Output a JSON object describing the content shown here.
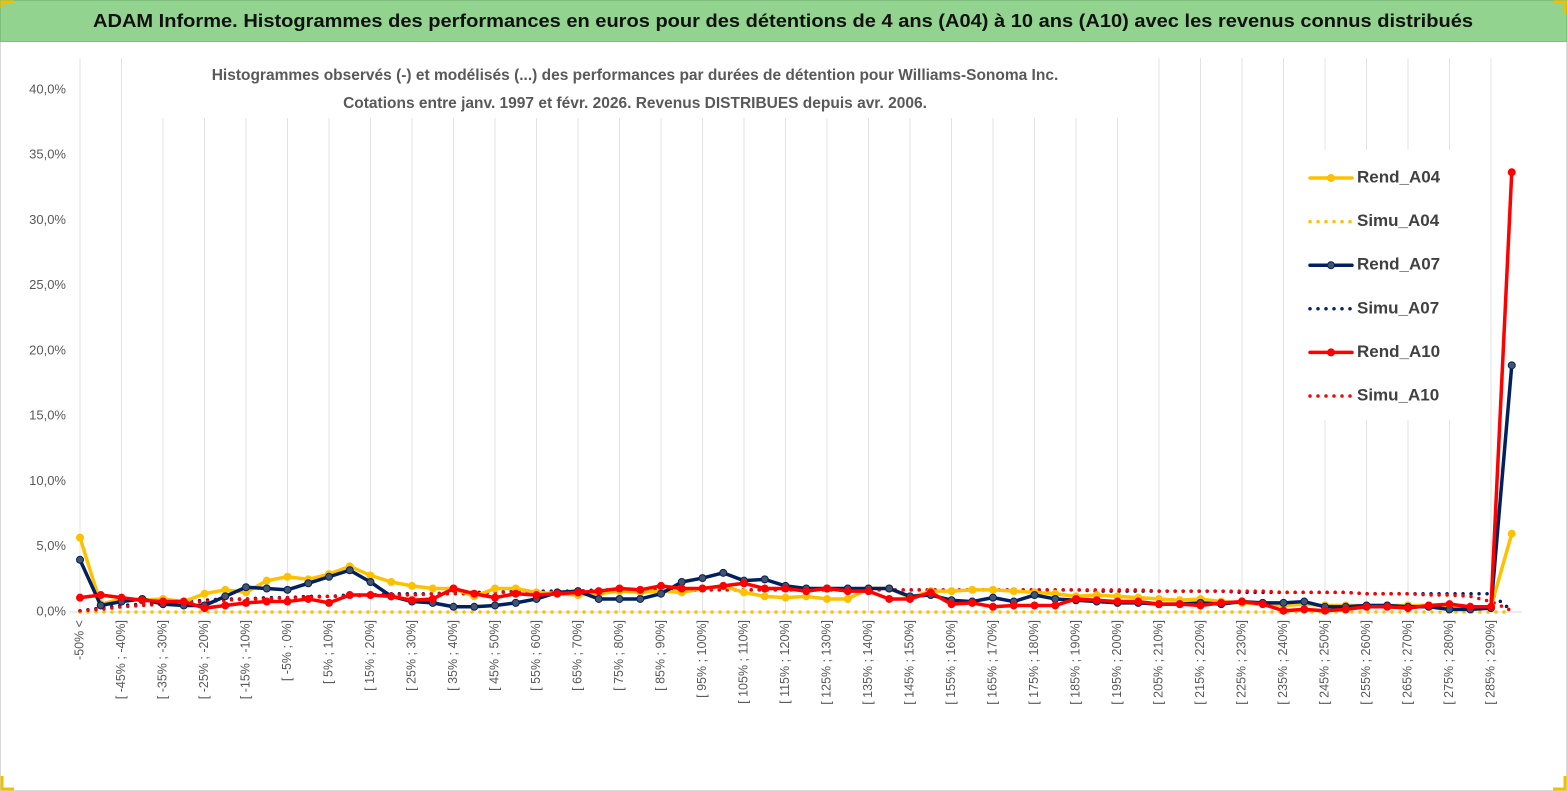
{
  "chart_data": {
    "type": "line",
    "title": "ADAM Informe. Histogrammes des performances en euros pour des détentions de 4 ans (A04) à 10 ans (A10) avec les revenus connus distribués",
    "subtitle": [
      "Histogrammes observés (-)  et modélisés (...) des performances par durées de détention pour Williams-Sonoma Inc.",
      "Cotations entre janv. 1997 et févr. 2026. Revenus DISTRIBUES depuis avr. 2006."
    ],
    "categories": [
      "-50% <",
      null,
      "[ -45% ; -40%]",
      null,
      "[ -35% ; -30%]",
      null,
      "[ -25% ; -20%]",
      null,
      "[ -15% ; -10%]",
      null,
      "[ -5% ; 0%]",
      null,
      "[ 5% ; 10%]",
      null,
      "[ 15% ; 20%]",
      null,
      "[ 25% ; 30%]",
      null,
      "[ 35% ; 40%]",
      null,
      "[ 45% ; 50%]",
      null,
      "[ 55% ; 60%]",
      null,
      "[ 65% ; 70%]",
      null,
      "[ 75% ; 80%]",
      null,
      "[ 85% ; 90%]",
      null,
      "[ 95% ; 100%]",
      null,
      "[ 105% ; 110%]",
      null,
      "[ 115% ; 120%]",
      null,
      "[ 125% ; 130%]",
      null,
      "[ 135% ; 140%]",
      null,
      "[ 145% ; 150%]",
      null,
      "[ 155% ; 160%]",
      null,
      "[ 165% ; 170%]",
      null,
      "[ 175% ; 180%]",
      null,
      "[ 185% ; 190%]",
      null,
      "[ 195% ; 200%]",
      null,
      "[ 205% ; 210%]",
      null,
      "[ 215% ; 220%]",
      null,
      "[ 225% ; 230%]",
      null,
      "[ 235% ; 240%]",
      null,
      "[ 245% ; 250%]",
      null,
      "[ 255% ; 260%]",
      null,
      "[ 265% ; 270%]",
      null,
      "[ 275% ; 280%]",
      null,
      "[ 285% ; 290%]",
      null
    ],
    "ylim": [
      0,
      40
    ],
    "yticks": [
      {
        "value": 0,
        "label": "0,0%"
      },
      {
        "value": 5,
        "label": "5,0%"
      },
      {
        "value": 10,
        "label": "10,0%"
      },
      {
        "value": 15,
        "label": "15,0%"
      },
      {
        "value": 20,
        "label": "20,0%"
      },
      {
        "value": 25,
        "label": "25,0%"
      },
      {
        "value": 30,
        "label": "30,0%"
      },
      {
        "value": 35,
        "label": "35,0%"
      },
      {
        "value": 40,
        "label": "40,0%"
      }
    ],
    "grid": "vertical",
    "legend": "right",
    "series": [
      {
        "name": "Rend_A04",
        "color": "#FFC000",
        "style": "solid",
        "markers": true,
        "values": [
          5.7,
          0.6,
          1.0,
          0.9,
          1.0,
          0.8,
          1.4,
          1.7,
          1.5,
          2.4,
          2.7,
          2.5,
          2.9,
          3.5,
          2.8,
          2.3,
          2.0,
          1.8,
          1.8,
          1.2,
          1.8,
          1.8,
          1.5,
          1.4,
          1.3,
          1.4,
          1.6,
          1.5,
          1.6,
          1.5,
          1.8,
          2.0,
          1.5,
          1.2,
          1.1,
          1.2,
          1.0,
          1.0,
          1.8,
          1.8,
          1.1,
          1.6,
          1.6,
          1.7,
          1.7,
          1.6,
          1.5,
          1.4,
          1.2,
          1.3,
          1.2,
          1.1,
          1.0,
          0.9,
          1.0,
          0.8,
          0.7,
          0.6,
          0.5,
          0.6,
          0.5,
          0.5,
          0.5,
          0.5,
          0.5,
          0.5,
          0.4,
          0.4,
          0.4,
          6.0
        ]
      },
      {
        "name": "Simu_A04",
        "color": "#FFC000",
        "style": "dotted",
        "markers": false,
        "values": [
          0,
          0,
          0,
          0,
          0,
          0,
          0,
          0,
          0,
          0,
          0,
          0,
          0,
          0,
          0,
          0,
          0,
          0,
          0,
          0,
          0,
          0,
          0,
          0,
          0,
          0,
          0,
          0,
          0,
          0,
          0,
          0,
          0,
          0,
          0,
          0,
          0,
          0,
          0,
          0,
          0,
          0,
          0,
          0,
          0,
          0,
          0,
          0,
          0,
          0,
          0,
          0,
          0,
          0,
          0,
          0,
          0,
          0,
          0,
          0,
          0,
          0,
          0,
          0,
          0,
          0,
          0,
          0,
          0,
          0
        ]
      },
      {
        "name": "Rend_A07",
        "color": "#002060",
        "style": "solid",
        "markers": true,
        "values": [
          4.0,
          0.5,
          0.8,
          1.0,
          0.6,
          0.5,
          0.5,
          1.2,
          1.9,
          1.8,
          1.7,
          2.2,
          2.7,
          3.2,
          2.3,
          1.2,
          0.8,
          0.7,
          0.4,
          0.4,
          0.5,
          0.7,
          1.0,
          1.5,
          1.6,
          1.0,
          1.0,
          1.0,
          1.4,
          2.3,
          2.6,
          3.0,
          2.4,
          2.5,
          2.0,
          1.8,
          1.8,
          1.8,
          1.8,
          1.8,
          1.2,
          1.3,
          0.9,
          0.8,
          1.1,
          0.8,
          1.3,
          1.0,
          0.9,
          0.8,
          0.7,
          0.7,
          0.6,
          0.6,
          0.7,
          0.6,
          0.8,
          0.7,
          0.7,
          0.8,
          0.4,
          0.4,
          0.5,
          0.5,
          0.4,
          0.4,
          0.2,
          0.2,
          0.3,
          18.9
        ]
      },
      {
        "name": "Simu_A07",
        "color": "#002060",
        "style": "dotted",
        "markers": false,
        "values": [
          0.1,
          0.3,
          0.5,
          0.6,
          0.7,
          0.8,
          0.9,
          1.0,
          1.0,
          1.1,
          1.1,
          1.2,
          1.2,
          1.3,
          1.3,
          1.4,
          1.4,
          1.4,
          1.5,
          1.5,
          1.5,
          1.6,
          1.6,
          1.6,
          1.6,
          1.7,
          1.7,
          1.7,
          1.7,
          1.7,
          1.7,
          1.7,
          1.7,
          1.7,
          1.7,
          1.7,
          1.7,
          1.7,
          1.7,
          1.7,
          1.7,
          1.7,
          1.7,
          1.7,
          1.7,
          1.7,
          1.7,
          1.7,
          1.7,
          1.6,
          1.6,
          1.6,
          1.6,
          1.6,
          1.6,
          1.6,
          1.5,
          1.5,
          1.5,
          1.5,
          1.5,
          1.5,
          1.4,
          1.4,
          1.4,
          1.4,
          1.4,
          1.4,
          1.4,
          0.1
        ]
      },
      {
        "name": "Rend_A10",
        "color": "#FF0000",
        "style": "solid",
        "markers": true,
        "values": [
          1.1,
          1.3,
          1.1,
          0.9,
          0.8,
          0.8,
          0.3,
          0.5,
          0.7,
          0.8,
          0.8,
          1.0,
          0.7,
          1.3,
          1.3,
          1.2,
          0.9,
          1.0,
          1.8,
          1.4,
          1.1,
          1.4,
          1.3,
          1.4,
          1.5,
          1.6,
          1.8,
          1.7,
          2.0,
          1.8,
          1.8,
          2.0,
          2.2,
          1.8,
          1.8,
          1.6,
          1.8,
          1.6,
          1.6,
          1.0,
          1.0,
          1.5,
          0.6,
          0.7,
          0.4,
          0.5,
          0.5,
          0.5,
          1.0,
          0.9,
          0.8,
          0.8,
          0.6,
          0.6,
          0.5,
          0.7,
          0.8,
          0.6,
          0.1,
          0.2,
          0.1,
          0.2,
          0.4,
          0.4,
          0.3,
          0.5,
          0.6,
          0.4,
          0.4,
          33.7
        ]
      },
      {
        "name": "Simu_A10",
        "color": "#FF0000",
        "style": "dotted",
        "markers": false,
        "values": [
          0.1,
          0.2,
          0.4,
          0.5,
          0.6,
          0.7,
          0.8,
          0.9,
          1.0,
          1.0,
          1.1,
          1.1,
          1.2,
          1.2,
          1.3,
          1.3,
          1.3,
          1.4,
          1.4,
          1.4,
          1.5,
          1.5,
          1.5,
          1.5,
          1.6,
          1.6,
          1.6,
          1.6,
          1.6,
          1.6,
          1.7,
          1.7,
          1.7,
          1.7,
          1.7,
          1.7,
          1.7,
          1.7,
          1.7,
          1.7,
          1.7,
          1.7,
          1.7,
          1.7,
          1.7,
          1.7,
          1.7,
          1.7,
          1.7,
          1.7,
          1.7,
          1.7,
          1.6,
          1.6,
          1.6,
          1.6,
          1.6,
          1.6,
          1.5,
          1.5,
          1.5,
          1.5,
          1.4,
          1.4,
          1.4,
          1.3,
          1.3,
          1.2,
          0.8,
          0.1
        ]
      }
    ]
  }
}
